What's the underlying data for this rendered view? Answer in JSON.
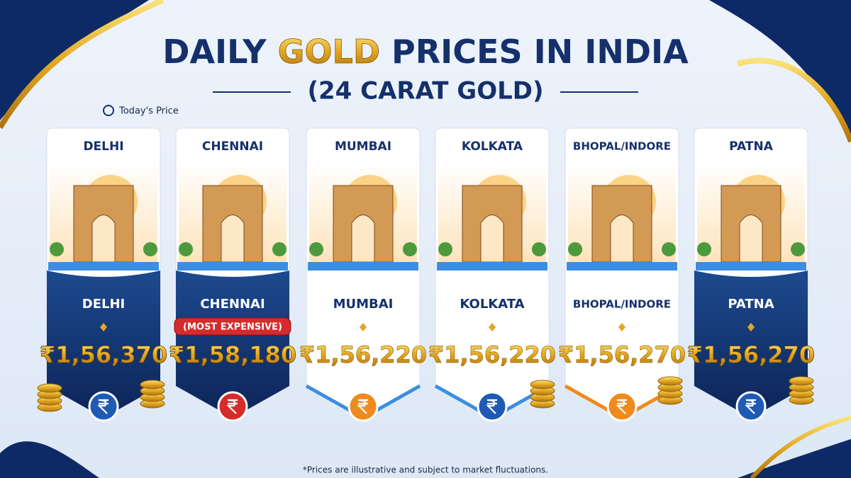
{
  "header": {
    "title_start": "DAILY",
    "title_highlight": "GOLD",
    "title_end": "PRICES IN INDIA",
    "subtitle": "(24 CARAT GOLD)",
    "today_label": "Today's Price"
  },
  "cards": [
    {
      "city": "DELHI",
      "city_label": "DELHI",
      "price": "₹1,56,370"
    },
    {
      "city": "CHENNAI",
      "city_label": "CHENNAI",
      "badge": "(MOST EXPENSIVE)",
      "price": "₹1,58,180"
    },
    {
      "city": "MUMBAI",
      "city_label": "MUMBAI",
      "price": "₹1,56,220"
    },
    {
      "city": "KOLKATA",
      "city_label": "KOLKATA",
      "price": "₹1,56,220"
    },
    {
      "city": "BHOPAL/INDORE",
      "city_label": "BHOPAL/INDORE",
      "price": "₹1,56,270"
    },
    {
      "city": "PATNA",
      "city_label": "PATNA",
      "price": "₹1,56,270"
    }
  ],
  "footnote": "*Prices are illustrative and subject to market fluctuations."
}
